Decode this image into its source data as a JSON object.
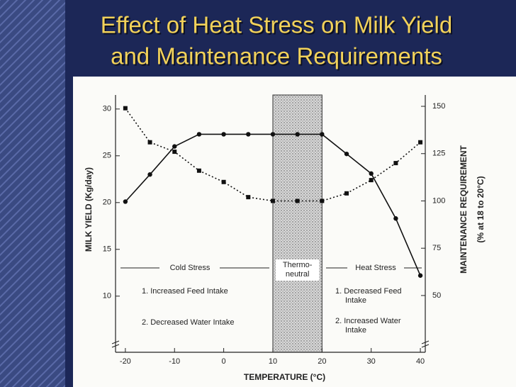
{
  "chart_data": {
    "type": "line",
    "title": [
      "Effect of Heat Stress on Milk Yield",
      "and Maintenance Requirements"
    ],
    "x_label": "TEMPERATURE (°C)",
    "y_label": "MILK YIELD (Kg/day)",
    "y2_label": [
      "MAINTENANCE REQUIREMENT",
      "(% at 18 to 20°C)"
    ],
    "x": [
      -20,
      -15,
      -10,
      -5,
      0,
      5,
      10,
      15,
      20,
      25,
      30,
      35,
      40
    ],
    "series": [
      {
        "name": "Milk yield",
        "color": "#111111",
        "marker": "circle",
        "dash": false,
        "values": [
          20.1,
          23.0,
          26.0,
          27.3,
          27.3,
          27.3,
          27.3,
          27.3,
          27.3,
          25.2,
          23.1,
          18.3,
          12.2
        ]
      },
      {
        "name": "Maintenance requirement",
        "color": "#111111",
        "marker": "square",
        "dash": true,
        "axis": "y2",
        "values": [
          149,
          131,
          126,
          116,
          110,
          102,
          100,
          100,
          100,
          104,
          111,
          120,
          131
        ]
      }
    ],
    "xlim": [
      -22,
      41
    ],
    "xticks": [
      -20,
      -10,
      0,
      10,
      20,
      30,
      40
    ],
    "ylim": [
      4,
      31.5
    ],
    "yticks": [
      10,
      15,
      20,
      25,
      30
    ],
    "y2lim": [
      20,
      156
    ],
    "y2ticks": [
      50,
      75,
      100,
      125,
      150
    ],
    "thermoneutral_zone": [
      10,
      20
    ],
    "annotations": {
      "zone_label": [
        "Thermo-",
        "neutral"
      ],
      "cold_stress": "Cold Stress",
      "heat_stress": "Heat Stress",
      "cold_effects": [
        "1. Increased Feed Intake",
        "2. Decreased Water Intake"
      ],
      "heat_effects": [
        [
          "1. Decreased Feed",
          "Intake"
        ],
        [
          "2. Increased Water",
          "Intake"
        ]
      ]
    }
  }
}
